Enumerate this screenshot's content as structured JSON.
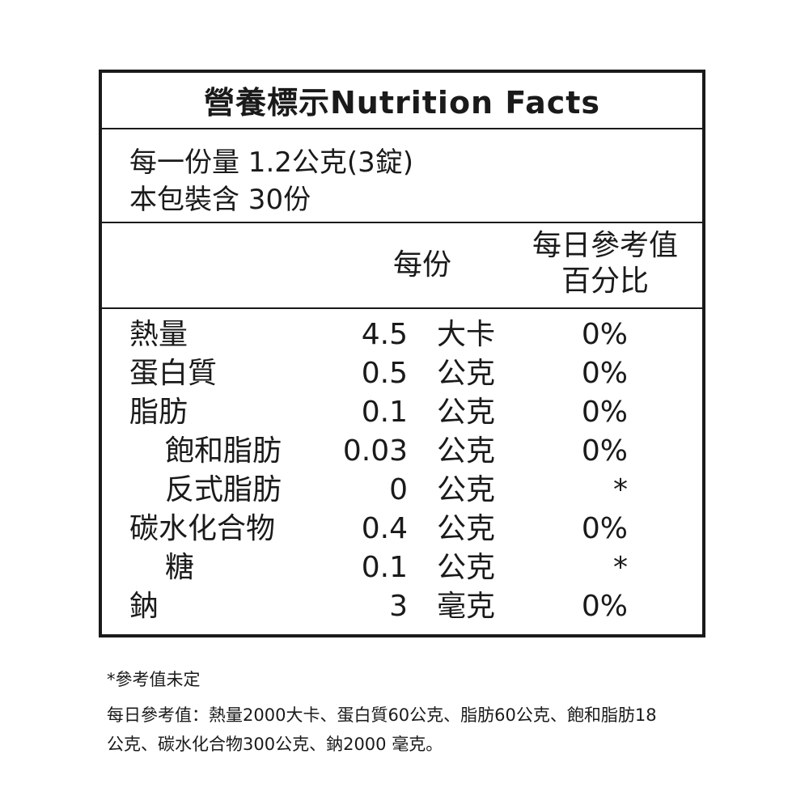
{
  "label": {
    "title": "營養標示Nutrition Facts",
    "serving_size": "每一份量 1.2公克(3錠)",
    "servings_per_package": "本包裝含 30份",
    "header_per_serving": "每份",
    "header_dv_line1": "每日參考值",
    "header_dv_line2": "百分比",
    "rows": [
      {
        "name": "熱量",
        "amount": "4.5",
        "unit": "大卡",
        "dv": "0%"
      },
      {
        "name": "蛋白質",
        "amount": "0.5",
        "unit": "公克",
        "dv": "0%"
      },
      {
        "name": "脂肪",
        "amount": "0.1",
        "unit": "公克",
        "dv": "0%"
      },
      {
        "name": "飽和脂肪",
        "amount": "0.03",
        "unit": "公克",
        "dv": "0%"
      },
      {
        "name": "反式脂肪",
        "amount": "0",
        "unit": "公克",
        "dv": "*"
      },
      {
        "name": "碳水化合物",
        "amount": "0.4",
        "unit": "公克",
        "dv": "0%"
      },
      {
        "name": "糖",
        "amount": "0.1",
        "unit": "公克",
        "dv": "*"
      },
      {
        "name": "鈉",
        "amount": "3",
        "unit": "毫克",
        "dv": "0%"
      }
    ]
  },
  "notes": {
    "asterisk_note": "*參考值未定",
    "dv_line1": "每日參考值：熱量2000大卡、蛋白質60公克、脂肪60公克、飽和脂肪18",
    "dv_line2": "公克、碳水化合物300公克、鈉2000 毫克。"
  }
}
